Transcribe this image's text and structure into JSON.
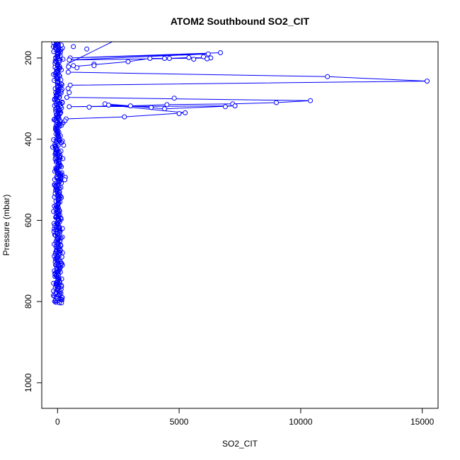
{
  "chart_data": {
    "type": "scatter",
    "title": "ATOM2 Southbound SO2_CIT",
    "xlabel": "SO2_CIT",
    "ylabel": "Pressure (mbar)",
    "xlim": [
      -650,
      15650
    ],
    "ylim": [
      1063,
      160
    ],
    "y_reversed": true,
    "grid": false,
    "legend": "none",
    "x_ticks": [
      0,
      5000,
      10000,
      15000
    ],
    "y_ticks": [
      200,
      400,
      600,
      800,
      1000
    ],
    "colors": {
      "series": "#0000ff",
      "axes": "#000000"
    },
    "series": [
      {
        "style": "line+markers",
        "x": [
          6700,
          520,
          6200,
          480,
          6300,
          5400,
          4600,
          3800,
          2900,
          450,
          440,
          11100,
          15200,
          520,
          480,
          380,
          10400,
          9000,
          7200,
          4500,
          3000,
          480,
          7300,
          4400,
          1950,
          3850,
          2100,
          5250,
          2750,
          350,
          300
        ],
        "y": [
          187,
          200,
          190,
          205,
          200,
          199,
          201,
          201,
          209,
          222,
          235,
          246,
          257,
          267,
          285,
          297,
          305,
          310,
          313,
          315,
          318,
          320,
          318,
          325,
          313,
          322,
          316,
          335,
          345,
          350,
          355
        ]
      },
      {
        "style": "markers",
        "x": [
          1200,
          650,
          6000,
          6150,
          5600,
          4400,
          1500,
          1500,
          800,
          650,
          430,
          4800,
          6900,
          5000,
          1300,
          250,
          200,
          180,
          320,
          210,
          300,
          200,
          200,
          150,
          190,
          160,
          150,
          160,
          200,
          150
        ],
        "y": [
          178,
          172,
          197,
          202,
          203,
          201,
          215,
          219,
          224,
          219,
          275,
          299,
          320,
          337,
          321,
          415,
          490,
          494,
          494,
          497,
          500,
          620,
          710,
          760,
          790,
          800,
          803,
          803,
          175,
          168
        ]
      },
      {
        "style": "line",
        "x": [
          360,
          2250
        ],
        "y": [
          216,
          160
        ]
      },
      {
        "style": "dense-column",
        "x_center": 0,
        "x_spread": 350,
        "y_range": [
          160,
          803
        ]
      }
    ]
  }
}
